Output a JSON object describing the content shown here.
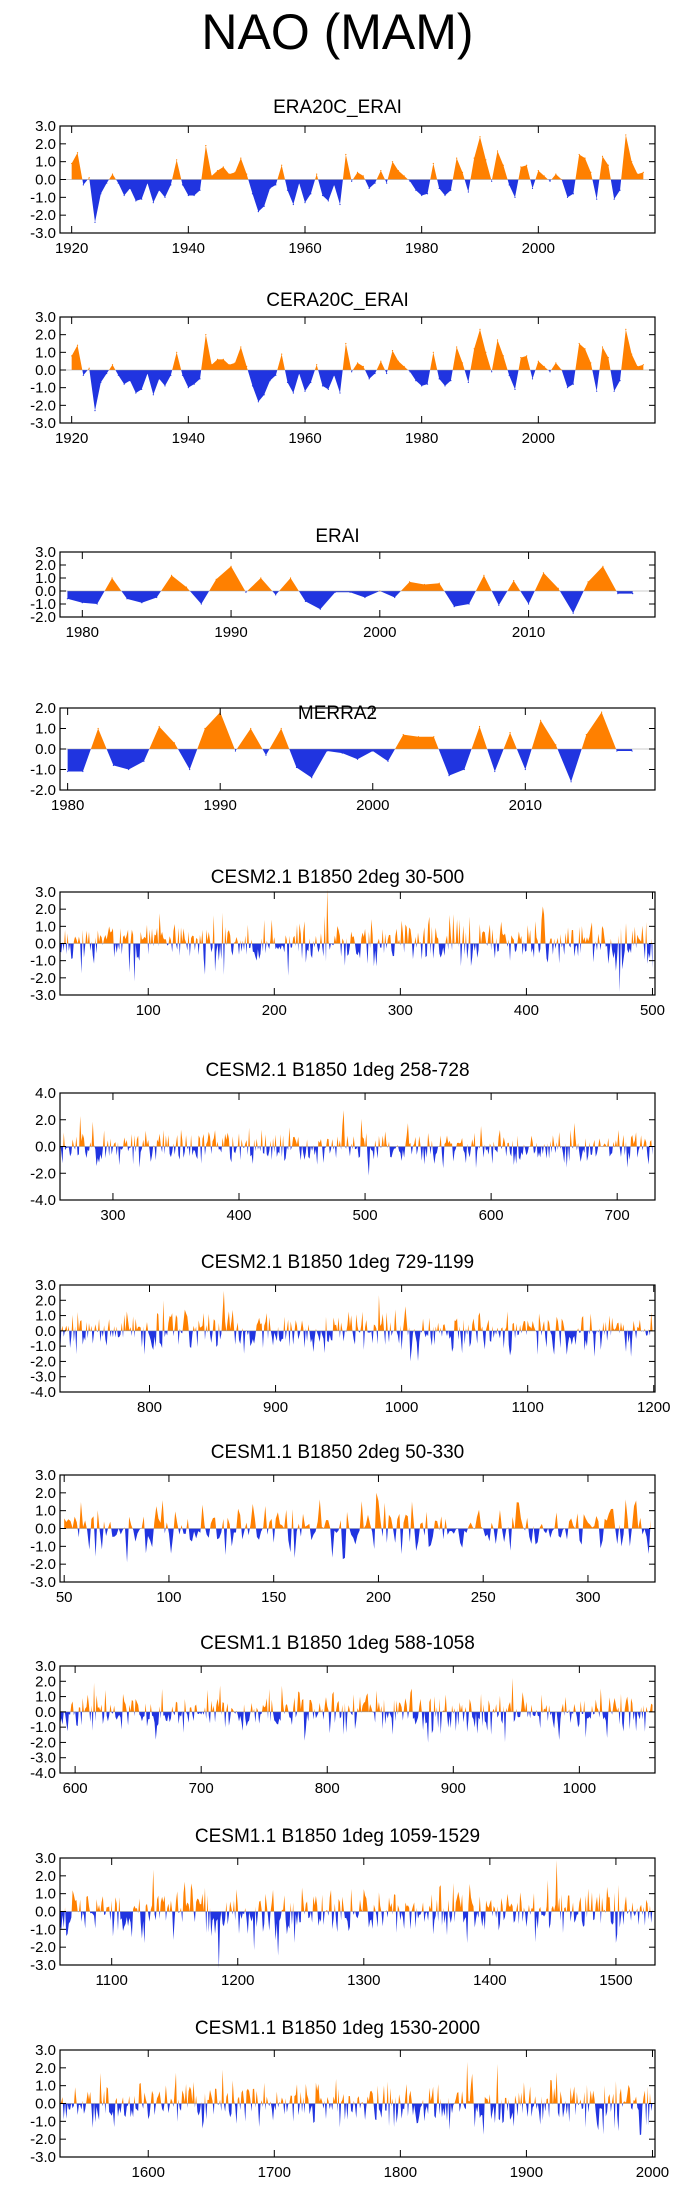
{
  "main_title": "NAO (MAM)",
  "colors": {
    "positive": "#ff8000",
    "negative": "#2034e0",
    "axis": "#000000"
  },
  "chart_data": [
    {
      "id": "era20c",
      "type": "area",
      "title": "ERA20C_ERAI",
      "xlim": [
        1918,
        2020
      ],
      "ylim": [
        -3.0,
        3.0
      ],
      "yticks": [
        "3.0",
        "2.0",
        "1.0",
        "0.0",
        "-1.0",
        "-2.0",
        "-3.0"
      ],
      "xticks": [
        1920,
        1940,
        1960,
        1980,
        2000
      ],
      "xtick_labels": [
        "1920",
        "1940",
        "1960",
        "1980",
        "2000"
      ],
      "x": [
        1920,
        1921,
        1922,
        1923,
        1924,
        1925,
        1926,
        1927,
        1928,
        1929,
        1930,
        1931,
        1932,
        1933,
        1934,
        1935,
        1936,
        1937,
        1938,
        1939,
        1940,
        1941,
        1942,
        1943,
        1944,
        1945,
        1946,
        1947,
        1948,
        1949,
        1950,
        1951,
        1952,
        1953,
        1954,
        1955,
        1956,
        1957,
        1958,
        1959,
        1960,
        1961,
        1962,
        1963,
        1964,
        1965,
        1966,
        1967,
        1968,
        1969,
        1970,
        1971,
        1972,
        1973,
        1974,
        1975,
        1976,
        1977,
        1978,
        1979,
        1980,
        1981,
        1982,
        1983,
        1984,
        1985,
        1986,
        1987,
        1988,
        1989,
        1990,
        1991,
        1992,
        1993,
        1994,
        1995,
        1996,
        1997,
        1998,
        1999,
        2000,
        2001,
        2002,
        2003,
        2004,
        2005,
        2006,
        2007,
        2008,
        2009,
        2010,
        2011,
        2012,
        2013,
        2014,
        2015,
        2016,
        2017,
        2018
      ],
      "values": [
        0.9,
        1.5,
        -0.3,
        0.1,
        -2.4,
        -0.8,
        -0.2,
        0.3,
        -0.2,
        -0.9,
        -0.5,
        -1.2,
        -1.1,
        -0.2,
        -1.3,
        -0.6,
        -1.0,
        -0.3,
        1.1,
        -0.3,
        -0.9,
        -0.9,
        -0.6,
        1.9,
        0.2,
        0.5,
        0.7,
        0.3,
        0.4,
        1.2,
        0.3,
        -0.8,
        -1.8,
        -1.5,
        -0.5,
        -0.3,
        0.8,
        -0.6,
        -1.4,
        -0.2,
        -1.3,
        -0.8,
        0.3,
        -0.9,
        -1.2,
        -0.3,
        -1.4,
        1.4,
        -0.1,
        0.4,
        0.2,
        -0.5,
        -0.2,
        0.5,
        -0.2,
        1.0,
        0.5,
        0.2,
        -0.1,
        -0.6,
        -0.9,
        -0.8,
        0.9,
        -0.5,
        -0.9,
        -0.6,
        1.2,
        0.4,
        -0.7,
        1.2,
        2.4,
        1.1,
        -0.1,
        1.6,
        0.8,
        -0.3,
        -1.0,
        0.7,
        0.8,
        -0.5,
        0.5,
        0.2,
        -0.1,
        0.3,
        0.0,
        -1.0,
        -0.8,
        1.4,
        1.2,
        0.4,
        -1.1,
        1.3,
        0.8,
        -1.1,
        -0.6,
        2.5,
        1.0,
        0.3,
        0.4
      ]
    },
    {
      "id": "cera20c",
      "type": "area",
      "title": "CERA20C_ERAI",
      "xlim": [
        1918,
        2020
      ],
      "ylim": [
        -3.0,
        3.0
      ],
      "yticks": [
        "3.0",
        "2.0",
        "1.0",
        "0.0",
        "-1.0",
        "-2.0",
        "-3.0"
      ],
      "xticks": [
        1920,
        1940,
        1960,
        1980,
        2000
      ],
      "xtick_labels": [
        "1920",
        "1940",
        "1960",
        "1980",
        "2000"
      ],
      "x": [
        1920,
        1921,
        1922,
        1923,
        1924,
        1925,
        1926,
        1927,
        1928,
        1929,
        1930,
        1931,
        1932,
        1933,
        1934,
        1935,
        1936,
        1937,
        1938,
        1939,
        1940,
        1941,
        1942,
        1943,
        1944,
        1945,
        1946,
        1947,
        1948,
        1949,
        1950,
        1951,
        1952,
        1953,
        1954,
        1955,
        1956,
        1957,
        1958,
        1959,
        1960,
        1961,
        1962,
        1963,
        1964,
        1965,
        1966,
        1967,
        1968,
        1969,
        1970,
        1971,
        1972,
        1973,
        1974,
        1975,
        1976,
        1977,
        1978,
        1979,
        1980,
        1981,
        1982,
        1983,
        1984,
        1985,
        1986,
        1987,
        1988,
        1989,
        1990,
        1991,
        1992,
        1993,
        1994,
        1995,
        1996,
        1997,
        1998,
        1999,
        2000,
        2001,
        2002,
        2003,
        2004,
        2005,
        2006,
        2007,
        2008,
        2009,
        2010,
        2011,
        2012,
        2013,
        2014,
        2015,
        2016,
        2017,
        2018
      ],
      "values": [
        0.8,
        1.4,
        -0.3,
        0.1,
        -2.3,
        -0.7,
        -0.2,
        0.3,
        -0.3,
        -0.8,
        -0.6,
        -1.3,
        -1.1,
        -0.2,
        -1.4,
        -0.5,
        -0.9,
        -0.3,
        1.0,
        -0.3,
        -1.0,
        -0.8,
        -0.5,
        2.0,
        0.3,
        0.6,
        0.6,
        0.3,
        0.4,
        1.3,
        0.2,
        -0.9,
        -1.8,
        -1.4,
        -0.6,
        -0.3,
        0.9,
        -0.7,
        -1.3,
        -0.2,
        -1.2,
        -0.7,
        0.3,
        -0.9,
        -1.1,
        -0.3,
        -1.3,
        1.5,
        -0.1,
        0.4,
        0.2,
        -0.5,
        -0.2,
        0.5,
        -0.2,
        1.1,
        0.5,
        0.2,
        -0.1,
        -0.6,
        -0.9,
        -0.8,
        1.0,
        -0.5,
        -0.9,
        -0.6,
        1.3,
        0.4,
        -0.7,
        1.2,
        2.3,
        1.0,
        -0.1,
        1.7,
        0.8,
        -0.3,
        -1.1,
        0.7,
        0.8,
        -0.5,
        0.5,
        0.2,
        -0.1,
        0.4,
        0.0,
        -1.0,
        -0.8,
        1.5,
        1.2,
        0.4,
        -1.2,
        1.3,
        0.7,
        -1.2,
        -0.6,
        2.3,
        0.9,
        0.2,
        0.3
      ]
    },
    {
      "id": "erai",
      "type": "area",
      "title": "ERAI",
      "xlim": [
        1978.5,
        2018.5
      ],
      "ylim": [
        -2.0,
        3.0
      ],
      "yticks": [
        "3.0",
        "2.0",
        "1.0",
        "0.0",
        "-1.0",
        "-2.0"
      ],
      "xticks": [
        1980,
        1990,
        2000,
        2010
      ],
      "xtick_labels": [
        "1980",
        "1990",
        "2000",
        "2010"
      ],
      "x": [
        1979,
        1980,
        1981,
        1982,
        1983,
        1984,
        1985,
        1986,
        1987,
        1988,
        1989,
        1990,
        1991,
        1992,
        1993,
        1994,
        1995,
        1996,
        1997,
        1998,
        1999,
        2000,
        2001,
        2002,
        2003,
        2004,
        2005,
        2006,
        2007,
        2008,
        2009,
        2010,
        2011,
        2012,
        2013,
        2014,
        2015,
        2016,
        2017
      ],
      "values": [
        -0.6,
        -0.9,
        -1.0,
        1.0,
        -0.6,
        -0.9,
        -0.5,
        1.2,
        0.3,
        -1.0,
        0.9,
        1.9,
        -0.1,
        1.0,
        -0.3,
        1.0,
        -0.8,
        -1.4,
        -0.1,
        -0.1,
        -0.5,
        0.0,
        -0.5,
        0.7,
        0.5,
        0.6,
        -1.2,
        -1.0,
        1.2,
        -1.1,
        0.8,
        -1.0,
        1.4,
        0.2,
        -1.7,
        0.7,
        1.9,
        -0.2,
        -0.2
      ]
    },
    {
      "id": "merra2",
      "type": "area",
      "title": "MERRA2",
      "xlim": [
        1979.5,
        2018.5
      ],
      "ylim": [
        -2.0,
        2.0
      ],
      "yticks": [
        "2.0",
        "1.0",
        "0.0",
        "-1.0",
        "-2.0"
      ],
      "xticks": [
        1980,
        1990,
        2000,
        2010
      ],
      "xtick_labels": [
        "1980",
        "1990",
        "2000",
        "2010"
      ],
      "x": [
        1980,
        1981,
        1982,
        1983,
        1984,
        1985,
        1986,
        1987,
        1988,
        1989,
        1990,
        1991,
        1992,
        1993,
        1994,
        1995,
        1996,
        1997,
        1998,
        1999,
        2000,
        2001,
        2002,
        2003,
        2004,
        2005,
        2006,
        2007,
        2008,
        2009,
        2010,
        2011,
        2012,
        2013,
        2014,
        2015,
        2016,
        2017
      ],
      "values": [
        -1.1,
        -1.1,
        1.0,
        -0.8,
        -1.0,
        -0.6,
        1.1,
        0.3,
        -1.0,
        1.0,
        1.8,
        -0.1,
        1.0,
        -0.3,
        1.0,
        -0.9,
        -1.4,
        -0.1,
        -0.2,
        -0.5,
        -0.1,
        -0.6,
        0.7,
        0.6,
        0.6,
        -1.3,
        -1.0,
        1.1,
        -1.1,
        0.8,
        -1.0,
        1.4,
        0.2,
        -1.6,
        0.7,
        1.8,
        -0.1,
        -0.1
      ]
    },
    {
      "id": "cesm21-2deg",
      "type": "area",
      "title": "CESM2.1 B1850 2deg 30-500",
      "series_kind": "noisy",
      "xlim": [
        30,
        502
      ],
      "ylim": [
        -3.0,
        3.0
      ],
      "yticks": [
        "3.0",
        "2.0",
        "1.0",
        "0.0",
        "-1.0",
        "-2.0",
        "-3.0"
      ],
      "xticks": [
        100,
        200,
        300,
        400,
        500
      ],
      "xtick_labels": [
        "100",
        "200",
        "300",
        "400",
        "500"
      ],
      "x_start": 30,
      "x_end": 500,
      "seed": 11
    },
    {
      "id": "cesm21-1deg-a",
      "type": "area",
      "title": "CESM2.1 B1850 1deg 258-728",
      "series_kind": "noisy",
      "xlim": [
        258,
        730
      ],
      "ylim": [
        -4.0,
        4.0
      ],
      "yticks": [
        "4.0",
        "2.0",
        "0.0",
        "-2.0",
        "-4.0"
      ],
      "xticks": [
        300,
        400,
        500,
        600,
        700
      ],
      "xtick_labels": [
        "300",
        "400",
        "500",
        "600",
        "700"
      ],
      "x_start": 258,
      "x_end": 728,
      "seed": 23
    },
    {
      "id": "cesm21-1deg-b",
      "type": "area",
      "title": "CESM2.1 B1850 1deg 729-1199",
      "series_kind": "noisy",
      "xlim": [
        729,
        1201
      ],
      "ylim": [
        -4.0,
        3.0
      ],
      "yticks": [
        "3.0",
        "2.0",
        "1.0",
        "0.0",
        "-1.0",
        "-2.0",
        "-3.0",
        "-4.0"
      ],
      "xticks": [
        800,
        900,
        1000,
        1100,
        1200
      ],
      "xtick_labels": [
        "800",
        "900",
        "1000",
        "1100",
        "1200"
      ],
      "x_start": 729,
      "x_end": 1199,
      "seed": 37
    },
    {
      "id": "cesm11-2deg",
      "type": "area",
      "title": "CESM1.1 B1850 2deg 50-330",
      "series_kind": "noisy",
      "xlim": [
        48,
        332
      ],
      "ylim": [
        -3.0,
        3.0
      ],
      "yticks": [
        "3.0",
        "2.0",
        "1.0",
        "0.0",
        "-1.0",
        "-2.0",
        "-3.0"
      ],
      "xticks": [
        50,
        100,
        150,
        200,
        250,
        300
      ],
      "xtick_labels": [
        "50",
        "100",
        "150",
        "200",
        "250",
        "300"
      ],
      "x_start": 50,
      "x_end": 330,
      "seed": 41
    },
    {
      "id": "cesm11-1deg-a",
      "type": "area",
      "title": "CESM1.1 B1850 1deg 588-1058",
      "series_kind": "noisy",
      "xlim": [
        588,
        1060
      ],
      "ylim": [
        -4.0,
        3.0
      ],
      "yticks": [
        "3.0",
        "2.0",
        "1.0",
        "0.0",
        "-1.0",
        "-2.0",
        "-3.0",
        "-4.0"
      ],
      "xticks": [
        600,
        700,
        800,
        900,
        1000
      ],
      "xtick_labels": [
        "600",
        "700",
        "800",
        "900",
        "1000"
      ],
      "x_start": 588,
      "x_end": 1058,
      "seed": 53
    },
    {
      "id": "cesm11-1deg-b",
      "type": "area",
      "title": "CESM1.1 B1850 1deg 1059-1529",
      "series_kind": "noisy",
      "xlim": [
        1059,
        1531
      ],
      "ylim": [
        -3.0,
        3.0
      ],
      "yticks": [
        "3.0",
        "2.0",
        "1.0",
        "0.0",
        "-1.0",
        "-2.0",
        "-3.0"
      ],
      "xticks": [
        1100,
        1200,
        1300,
        1400,
        1500
      ],
      "xtick_labels": [
        "1100",
        "1200",
        "1300",
        "1400",
        "1500"
      ],
      "x_start": 1059,
      "x_end": 1529,
      "seed": 67
    },
    {
      "id": "cesm11-1deg-c",
      "type": "area",
      "title": "CESM1.1 B1850 1deg 1530-2000",
      "series_kind": "noisy",
      "xlim": [
        1530,
        2002
      ],
      "ylim": [
        -3.0,
        3.0
      ],
      "yticks": [
        "3.0",
        "2.0",
        "1.0",
        "0.0",
        "-1.0",
        "-2.0",
        "-3.0"
      ],
      "xticks": [
        1600,
        1700,
        1800,
        1900,
        2000
      ],
      "xtick_labels": [
        "1600",
        "1700",
        "1800",
        "1900",
        "2000"
      ],
      "x_start": 1530,
      "x_end": 2000,
      "seed": 79
    }
  ]
}
